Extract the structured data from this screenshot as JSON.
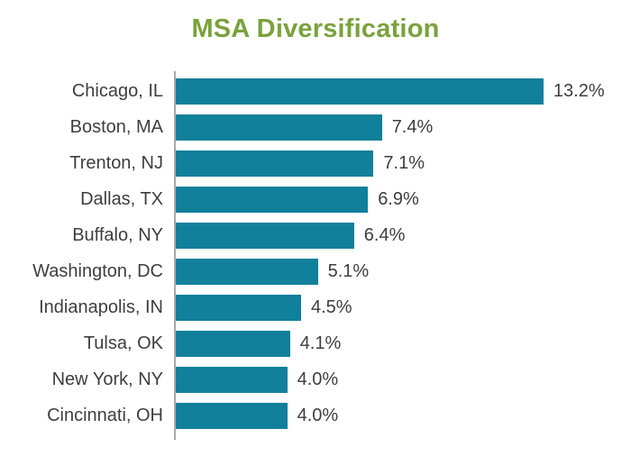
{
  "colors": {
    "bar": "#11809B",
    "title": "#7AA23C",
    "text": "#3E3E3E",
    "axis": "#A9A9A9",
    "bg": "#FFFFFF"
  },
  "chart_data": {
    "type": "bar",
    "orientation": "horizontal",
    "title": "MSA Diversification",
    "categories": [
      "Chicago, IL",
      "Boston, MA",
      "Trenton, NJ",
      "Dallas, TX",
      "Buffalo, NY",
      "Washington, DC",
      "Indianapolis, IN",
      "Tulsa, OK",
      "New York, NY",
      "Cincinnati, OH"
    ],
    "values": [
      13.2,
      7.4,
      7.1,
      6.9,
      6.4,
      5.1,
      4.5,
      4.1,
      4.0,
      4.0
    ],
    "value_labels": [
      "13.2%",
      "7.4%",
      "7.1%",
      "6.9%",
      "6.4%",
      "5.1%",
      "4.5%",
      "4.1%",
      "4.0%",
      "4.0%"
    ],
    "xlabel": "",
    "ylabel": "",
    "xlim": [
      0,
      16.4
    ],
    "grid": false,
    "legend": "none",
    "bar_value_labels_shown": true
  }
}
